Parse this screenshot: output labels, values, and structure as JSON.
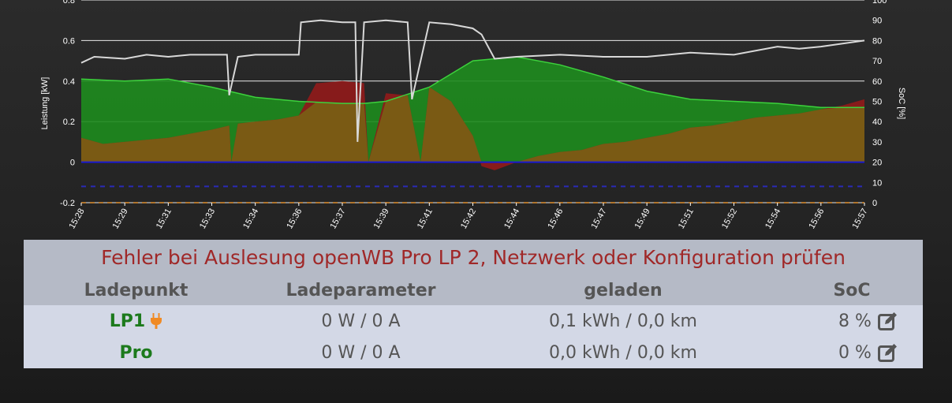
{
  "chart_data": {
    "type": "area",
    "ylabel_left": "Leistung [kW]",
    "ylabel_right": "SoC [%]",
    "ylim_left": [
      -0.2,
      0.8
    ],
    "ylim_right": [
      0,
      100
    ],
    "yticks_left": [
      "-0.2",
      "0",
      "0.2",
      "0.4",
      "0.6",
      "0.8"
    ],
    "yticks_right": [
      "0",
      "10",
      "20",
      "30",
      "40",
      "50",
      "60",
      "70",
      "80",
      "90",
      "100"
    ],
    "xticks": [
      "15:28",
      "15:29",
      "15:31",
      "15:33",
      "15:34",
      "15:36",
      "15:37",
      "15:39",
      "15:41",
      "15:42",
      "15:44",
      "15:46",
      "15:47",
      "15:49",
      "15:51",
      "15:52",
      "15:54",
      "15:56",
      "15:57"
    ],
    "grid": true,
    "colors": {
      "green_fill": "#1e8c1e",
      "green_line": "#3cd23c",
      "red_fill": "#8c1a1a",
      "brown_fill": "#7a5a14",
      "soc_line": "#d8d8d8",
      "blue_line": "#1a1ad0",
      "blue_dash": "#2a2ab8",
      "orange_dash": "#e09030"
    },
    "series": [
      {
        "axis": "left",
        "x": [
          0,
          1,
          2,
          3,
          4,
          5,
          6,
          6.5,
          7,
          8,
          9,
          10,
          11,
          12,
          13,
          14,
          15,
          16,
          17,
          18
        ],
        "values": [
          0.41,
          0.4,
          0.41,
          0.37,
          0.32,
          0.3,
          0.29,
          0.29,
          0.3,
          0.37,
          0.5,
          0.52,
          0.48,
          0.42,
          0.35,
          0.31,
          0.3,
          0.29,
          0.27,
          0.27
        ]
      },
      {
        "axis": "left",
        "x": [
          0,
          0.5,
          1,
          1.5,
          2,
          2.5,
          3,
          3.4,
          3.45,
          3.6,
          4,
          4.5,
          5,
          5.4,
          5.45,
          6,
          6.5,
          6.6,
          7,
          7.5,
          7.8,
          8,
          8.5,
          9,
          9.2,
          9.5,
          10,
          10.5,
          11,
          11.5,
          12,
          12.5,
          13,
          13.5,
          14,
          14.5,
          15,
          15.5,
          16,
          16.5,
          17,
          17.5,
          18
        ],
        "values": [
          0.12,
          0.09,
          0.1,
          0.11,
          0.12,
          0.14,
          0.16,
          0.18,
          0.0,
          0.19,
          0.2,
          0.21,
          0.23,
          0.39,
          0.39,
          0.4,
          0.39,
          0.0,
          0.34,
          0.33,
          0.0,
          0.37,
          0.3,
          0.13,
          -0.02,
          -0.04,
          0.0,
          0.03,
          0.05,
          0.06,
          0.09,
          0.1,
          0.12,
          0.14,
          0.17,
          0.18,
          0.2,
          0.22,
          0.23,
          0.24,
          0.26,
          0.28,
          0.31
        ]
      },
      {
        "axis": "right",
        "x": [
          0,
          0.3,
          1,
          1.5,
          2,
          2.5,
          3,
          3.35,
          3.4,
          3.6,
          4,
          4.5,
          5,
          5.05,
          5.5,
          6,
          6.3,
          6.35,
          6.5,
          7,
          7.5,
          7.6,
          8,
          8.5,
          9,
          9.2,
          9.5,
          10,
          11,
          12,
          13,
          14,
          15,
          16,
          16.5,
          17,
          18
        ],
        "values": [
          69,
          72,
          71,
          73,
          72,
          73,
          73,
          73,
          53,
          72,
          73,
          73,
          73,
          89,
          90,
          89,
          89,
          30,
          89,
          90,
          89,
          51,
          89,
          88,
          86,
          83,
          71,
          72,
          73,
          72,
          72,
          74,
          73,
          77,
          76,
          77,
          80
        ]
      },
      {
        "axis": "left",
        "x": [
          0,
          18
        ],
        "values": [
          0.0,
          0.0
        ]
      },
      {
        "axis": "left",
        "x": [
          0,
          18
        ],
        "values": [
          -0.12,
          -0.12
        ]
      },
      {
        "axis": "left",
        "x": [
          0,
          18
        ],
        "values": [
          -0.2,
          -0.2
        ]
      }
    ]
  },
  "status": {
    "error_message": "Fehler bei Auslesung openWB Pro LP 2, Netzwerk oder Konfiguration prüfen",
    "headers": [
      "Ladepunkt",
      "Ladeparameter",
      "geladen",
      "SoC"
    ],
    "rows": [
      {
        "name": "LP1",
        "params": "0 W / 0 A",
        "charged": "0,1 kWh / 0,0 km",
        "soc": "8 %",
        "plugged": true
      },
      {
        "name": "Pro",
        "params": "0 W / 0 A",
        "charged": "0,0 kWh / 0,0 km",
        "soc": "0 %",
        "plugged": false
      }
    ]
  },
  "icons": {
    "plug": "plug-icon",
    "edit": "edit-icon"
  }
}
